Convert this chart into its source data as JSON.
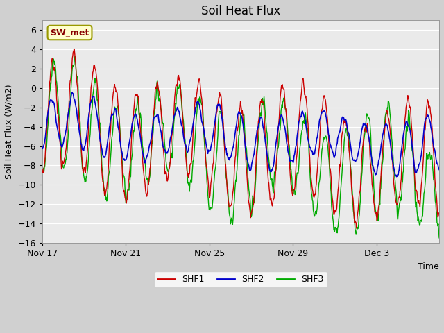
{
  "title": "Soil Heat Flux",
  "xlabel": "Time",
  "ylabel": "Soil Heat Flux (W/m2)",
  "ylim": [
    -16,
    7
  ],
  "yticks": [
    -16,
    -14,
    -12,
    -10,
    -8,
    -6,
    -4,
    -2,
    0,
    2,
    4,
    6
  ],
  "fig_bg_color": "#d0d0d0",
  "plot_bg_color": "#eaeaea",
  "line_colors": {
    "SHF1": "#cc0000",
    "SHF2": "#0000cc",
    "SHF3": "#00aa00"
  },
  "legend_label": "SW_met",
  "legend_bg": "#ffffcc",
  "legend_border": "#999900",
  "xtick_labels": [
    "Nov 17",
    "Nov 21",
    "Nov 25",
    "Nov 29",
    "Dec 3"
  ],
  "xtick_days": [
    0,
    4,
    8,
    12,
    16
  ],
  "n_days": 19,
  "grid_color": "#ffffff",
  "title_fontsize": 12,
  "axis_label_fontsize": 9,
  "tick_fontsize": 9
}
